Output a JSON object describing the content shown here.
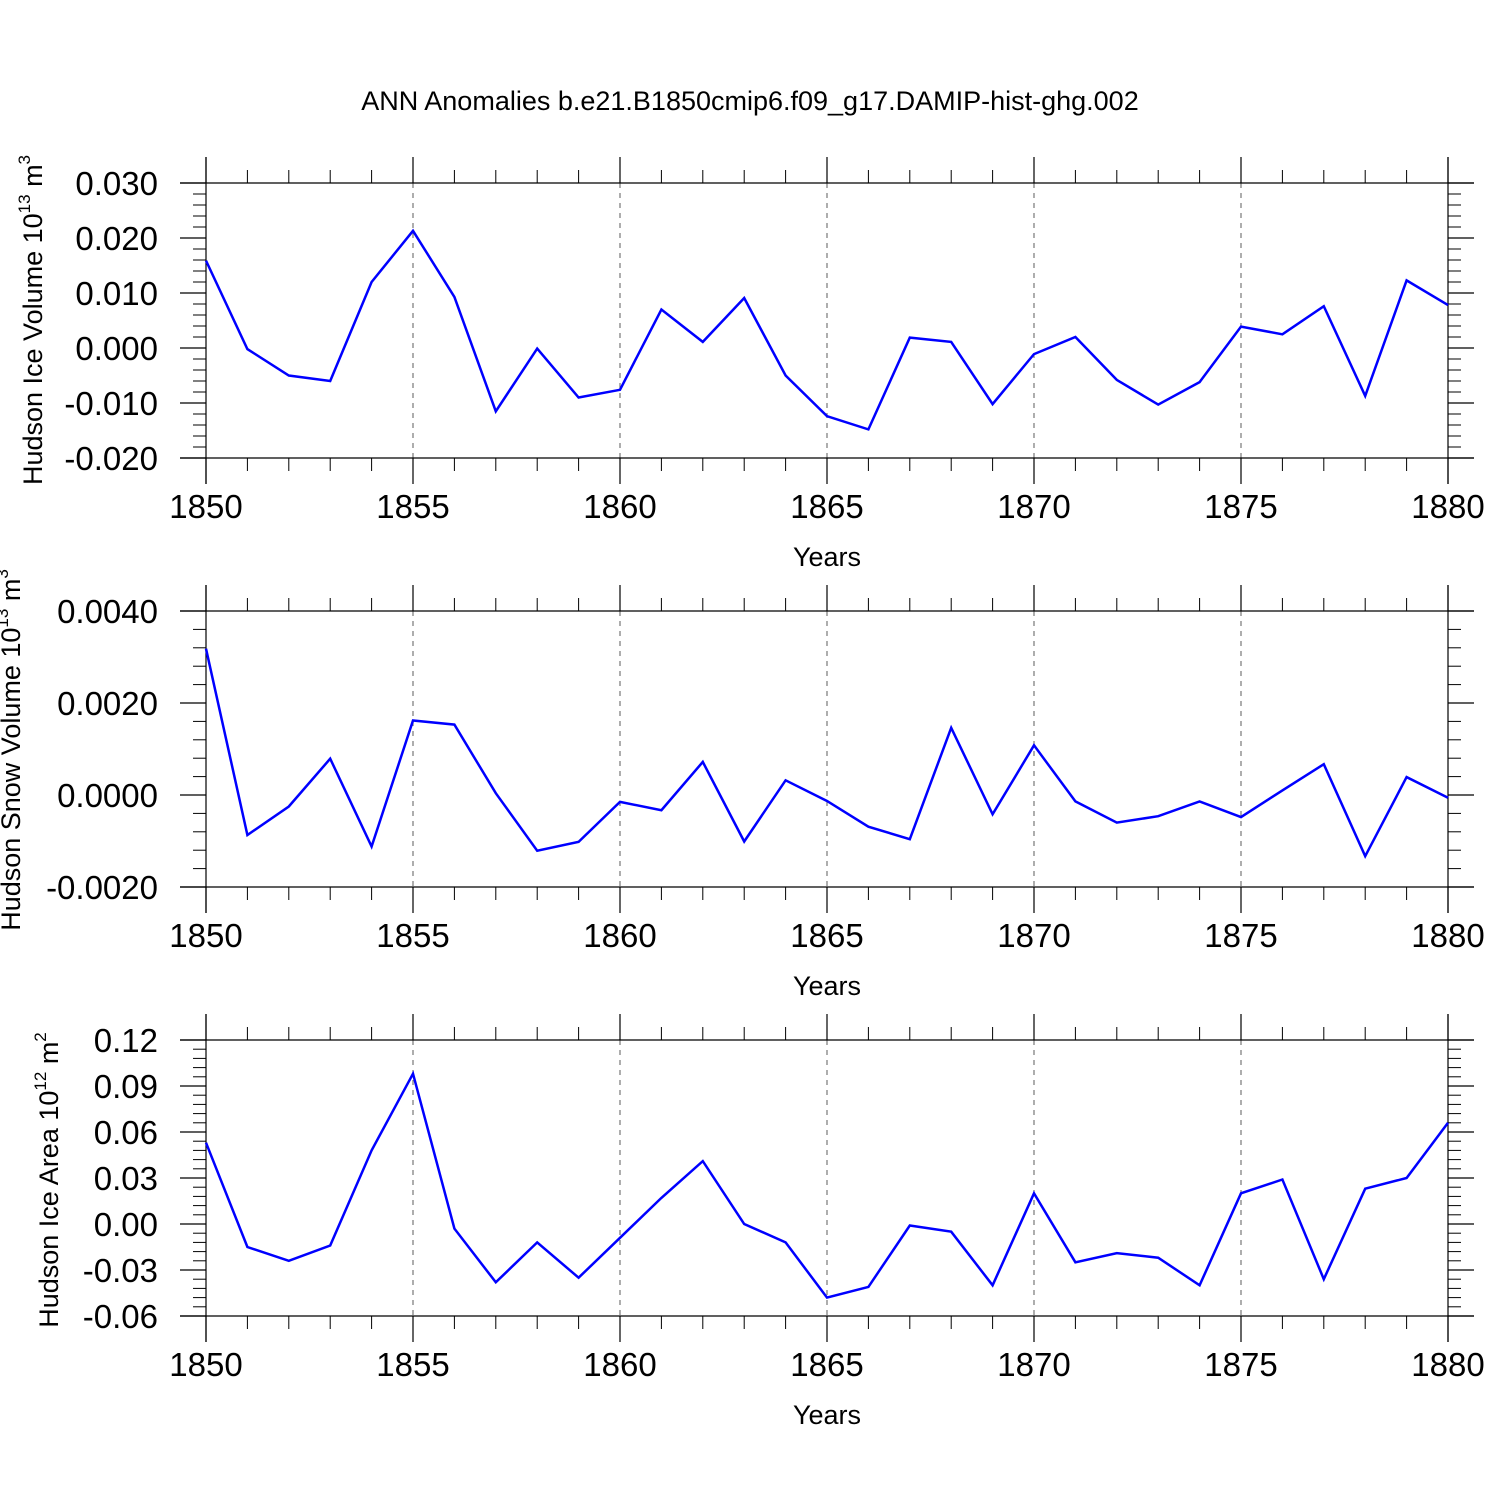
{
  "title": "ANN Anomalies b.e21.B1850cmip6.f09_g17.DAMIP-hist-ghg.002",
  "line_color": "#0000ff",
  "chart_data": [
    {
      "type": "line",
      "series": [
        {
          "name": "Hudson Ice Volume",
          "x": [
            1850,
            1851,
            1852,
            1853,
            1854,
            1855,
            1856,
            1857,
            1858,
            1859,
            1860,
            1861,
            1862,
            1863,
            1864,
            1865,
            1866,
            1867,
            1868,
            1869,
            1870,
            1871,
            1872,
            1873,
            1874,
            1875,
            1876,
            1877,
            1878,
            1879,
            1880
          ],
          "values": [
            0.0159,
            -0.0002,
            -0.005,
            -0.006,
            0.012,
            0.0213,
            0.0093,
            -0.0115,
            -0.0001,
            -0.009,
            -0.0076,
            0.007,
            0.0011,
            0.0091,
            -0.005,
            -0.0124,
            -0.0148,
            0.0019,
            0.0011,
            -0.0102,
            -0.0011,
            0.002,
            -0.0058,
            -0.0103,
            -0.0062,
            0.0039,
            0.0025,
            0.0076,
            -0.0087,
            0.0123,
            0.0078
          ]
        }
      ],
      "ylabel": "Hudson Ice Volume 10",
      "ylabel_exp": "13",
      "ylabel_unit": " m",
      "ylabel_unit_exp": "3",
      "xlabel": "Years",
      "xlim": [
        1850,
        1880
      ],
      "ylim": [
        -0.02,
        0.03
      ],
      "yticks": [
        -0.02,
        -0.01,
        0.0,
        0.01,
        0.02,
        0.03
      ],
      "ytick_labels": [
        "-0.020",
        "-0.010",
        "0.000",
        "0.010",
        "0.020",
        "0.030"
      ],
      "xticks": [
        1850,
        1855,
        1860,
        1865,
        1870,
        1875,
        1880
      ],
      "xtick_labels": [
        "1850",
        "1855",
        "1860",
        "1865",
        "1870",
        "1875",
        "1880"
      ]
    },
    {
      "type": "line",
      "series": [
        {
          "name": "Hudson Snow Volume",
          "x": [
            1850,
            1851,
            1852,
            1853,
            1854,
            1855,
            1856,
            1857,
            1858,
            1859,
            1860,
            1861,
            1862,
            1863,
            1864,
            1865,
            1866,
            1867,
            1868,
            1869,
            1870,
            1871,
            1872,
            1873,
            1874,
            1875,
            1876,
            1877,
            1878,
            1879,
            1880
          ],
          "values": [
            0.00318,
            -0.00087,
            -0.00025,
            0.00079,
            -0.00112,
            0.00162,
            0.00153,
            4e-05,
            -0.00121,
            -0.00102,
            -0.00015,
            -0.00033,
            0.00072,
            -0.00101,
            0.00032,
            -0.00013,
            -0.00069,
            -0.00096,
            0.00146,
            -0.00042,
            0.00108,
            -0.00014,
            -0.0006,
            -0.00046,
            -0.00014,
            -0.00048,
            0.0001,
            0.00067,
            -0.00133,
            0.00039,
            -6e-05
          ]
        }
      ],
      "ylabel": "Hudson Snow Volume 10",
      "ylabel_exp": "13",
      "ylabel_unit": " m",
      "ylabel_unit_exp": "3",
      "xlabel": "Years",
      "xlim": [
        1850,
        1880
      ],
      "ylim": [
        -0.002,
        0.004
      ],
      "yticks": [
        -0.002,
        0.0,
        0.002,
        0.004
      ],
      "ytick_labels": [
        "-0.0020",
        "0.0000",
        "0.0020",
        "0.0040"
      ],
      "xticks": [
        1850,
        1855,
        1860,
        1865,
        1870,
        1875,
        1880
      ],
      "xtick_labels": [
        "1850",
        "1855",
        "1860",
        "1865",
        "1870",
        "1875",
        "1880"
      ]
    },
    {
      "type": "line",
      "series": [
        {
          "name": "Hudson Ice Area",
          "x": [
            1850,
            1851,
            1852,
            1853,
            1854,
            1855,
            1856,
            1857,
            1858,
            1859,
            1860,
            1861,
            1862,
            1863,
            1864,
            1865,
            1866,
            1867,
            1868,
            1869,
            1870,
            1871,
            1872,
            1873,
            1874,
            1875,
            1876,
            1877,
            1878,
            1879,
            1880
          ],
          "values": [
            0.053,
            -0.015,
            -0.024,
            -0.014,
            0.048,
            0.098,
            -0.003,
            -0.038,
            -0.012,
            -0.035,
            -0.009,
            0.017,
            0.041,
            0.0,
            -0.012,
            -0.048,
            -0.041,
            -0.001,
            -0.005,
            -0.04,
            0.02,
            -0.025,
            -0.019,
            -0.022,
            -0.04,
            0.02,
            0.029,
            -0.036,
            0.023,
            0.03,
            0.066
          ]
        }
      ],
      "ylabel": "Hudson Ice Area 10",
      "ylabel_exp": "12",
      "ylabel_unit": " m",
      "ylabel_unit_exp": "2",
      "xlabel": "Years",
      "xlim": [
        1850,
        1880
      ],
      "ylim": [
        -0.06,
        0.12
      ],
      "yticks": [
        -0.06,
        -0.03,
        0.0,
        0.03,
        0.06,
        0.09,
        0.12
      ],
      "ytick_labels": [
        "-0.06",
        "-0.03",
        "0.00",
        "0.03",
        "0.06",
        "0.09",
        "0.12"
      ],
      "xticks": [
        1850,
        1855,
        1860,
        1865,
        1870,
        1875,
        1880
      ],
      "xtick_labels": [
        "1850",
        "1855",
        "1860",
        "1865",
        "1870",
        "1875",
        "1880"
      ]
    }
  ]
}
